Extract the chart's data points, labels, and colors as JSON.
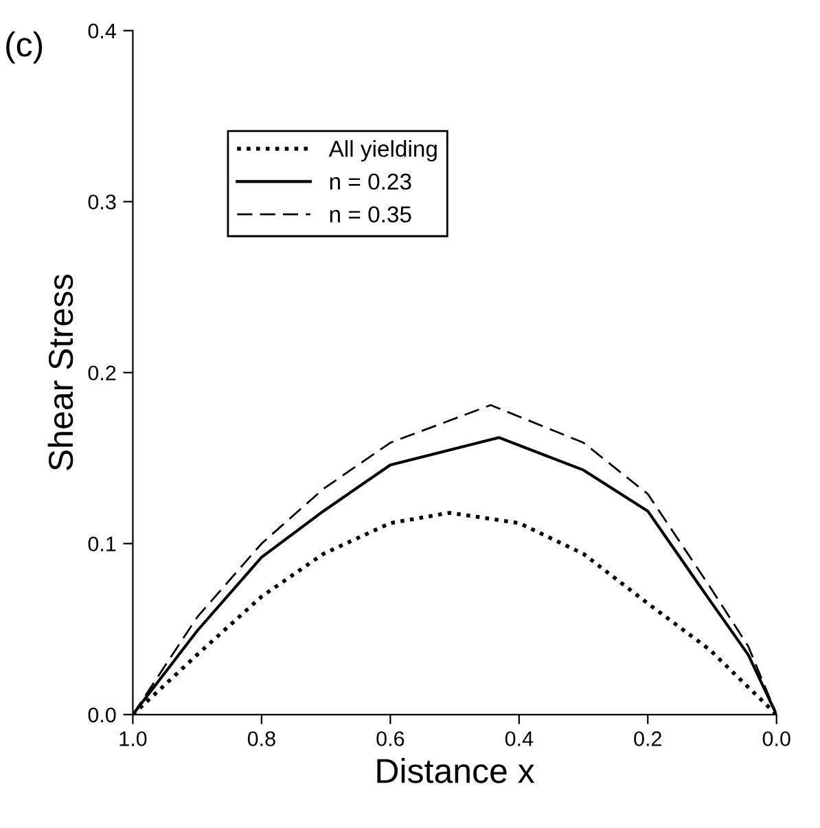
{
  "chart_data": {
    "type": "line",
    "xlabel": "Distance x",
    "ylabel": "Shear Stress",
    "annotations": [
      "(c)"
    ],
    "xlim": [
      1.0,
      0.0
    ],
    "ylim": [
      0.0,
      0.4
    ],
    "xticks": [
      {
        "value": 1.0,
        "label": "1.0"
      },
      {
        "value": 0.8,
        "label": "0.8"
      },
      {
        "value": 0.6,
        "label": "0.6"
      },
      {
        "value": 0.4,
        "label": "0.4"
      },
      {
        "value": 0.2,
        "label": "0.2"
      },
      {
        "value": 0.0,
        "label": "0.0"
      }
    ],
    "yticks": [
      {
        "value": 0.0,
        "label": "0.0"
      },
      {
        "value": 0.1,
        "label": "0.1"
      },
      {
        "value": 0.2,
        "label": "0.2"
      },
      {
        "value": 0.3,
        "label": "0.3"
      },
      {
        "value": 0.4,
        "label": "0.4"
      }
    ],
    "grid": false,
    "legend": "top left",
    "marker": "none",
    "series": [
      {
        "name": "All yielding",
        "color": "#000000",
        "line_style": "dotted",
        "x": [
          1.0,
          0.9,
          0.8,
          0.704,
          0.6,
          0.508,
          0.4,
          0.3,
          0.2,
          0.104,
          0.044,
          0.0
        ],
        "values": [
          0.0,
          0.035,
          0.069,
          0.094,
          0.112,
          0.118,
          0.112,
          0.094,
          0.065,
          0.038,
          0.016,
          0.0
        ]
      },
      {
        "name": "n = 0.23",
        "color": "#000000",
        "line_style": "solid",
        "x": [
          1.0,
          0.9,
          0.8,
          0.704,
          0.6,
          0.431,
          0.3,
          0.2,
          0.104,
          0.044,
          0.0
        ],
        "values": [
          0.0,
          0.049,
          0.092,
          0.119,
          0.146,
          0.162,
          0.143,
          0.119,
          0.067,
          0.035,
          0.0
        ]
      },
      {
        "name": "n = 0.35",
        "color": "#000000",
        "line_style": "dashed",
        "x": [
          1.0,
          0.9,
          0.8,
          0.704,
          0.6,
          0.444,
          0.3,
          0.2,
          0.104,
          0.044,
          0.0
        ],
        "values": [
          0.0,
          0.057,
          0.1,
          0.132,
          0.159,
          0.181,
          0.159,
          0.129,
          0.075,
          0.04,
          0.0
        ]
      }
    ]
  }
}
